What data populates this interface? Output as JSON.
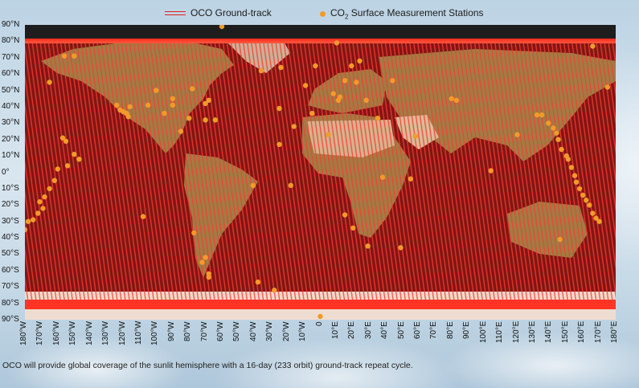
{
  "legend": {
    "track_label": "OCO Ground-track",
    "stations_label_prefix": "CO",
    "stations_label_sub": "2",
    "stations_label_suffix": " Surface Measurement Stations"
  },
  "colors": {
    "track": "#e02020",
    "stations": "#f39a2a",
    "ocean": "#8c1a18",
    "land": "#9a7a3a",
    "polar": "#f4e2d8"
  },
  "lat_labels": [
    "90°N",
    "80°N",
    "70°N",
    "60°N",
    "50°N",
    "40°N",
    "30°N",
    "20°N",
    "10°N",
    "0°",
    "10°S",
    "20°S",
    "30°S",
    "40°S",
    "50°S",
    "60°S",
    "70°S",
    "80°S",
    "90°S"
  ],
  "lon_labels": [
    "180°W",
    "170°W",
    "160°W",
    "150°W",
    "140°W",
    "130°W",
    "120°W",
    "110°W",
    "100°W",
    "90°W",
    "80°W",
    "70°W",
    "60°W",
    "50°W",
    "40°W",
    "30°W",
    "20°W",
    "10°W",
    "0",
    "10°E",
    "20°E",
    "30°E",
    "40°E",
    "50°E",
    "60°E",
    "70°E",
    "80°E",
    "90°E",
    "100°E",
    "110°E",
    "120°E",
    "130°E",
    "140°E",
    "150°E",
    "160°E",
    "170°E",
    "180°E"
  ],
  "stations": [
    [
      -60,
      89
    ],
    [
      -150,
      71
    ],
    [
      10,
      79
    ],
    [
      166,
      77
    ],
    [
      -156,
      71
    ],
    [
      -165,
      55
    ],
    [
      -36,
      62
    ],
    [
      24,
      68
    ],
    [
      19,
      65
    ],
    [
      -3,
      65
    ],
    [
      -78,
      51
    ],
    [
      -100,
      50
    ],
    [
      -68,
      44
    ],
    [
      -70,
      42
    ],
    [
      -105,
      41
    ],
    [
      -116,
      40
    ],
    [
      -120,
      37
    ],
    [
      -117,
      34
    ],
    [
      -118,
      36
    ],
    [
      -122,
      38
    ],
    [
      -124,
      41
    ],
    [
      -90,
      45
    ],
    [
      -90,
      41
    ],
    [
      -95,
      36
    ],
    [
      -80,
      33
    ],
    [
      -85,
      25
    ],
    [
      -70,
      32
    ],
    [
      -64,
      32
    ],
    [
      -25,
      39
    ],
    [
      -16,
      28
    ],
    [
      -9,
      53
    ],
    [
      -24,
      64
    ],
    [
      8,
      48
    ],
    [
      11,
      44
    ],
    [
      12,
      46
    ],
    [
      15,
      56
    ],
    [
      22,
      55
    ],
    [
      28,
      44
    ],
    [
      35,
      33
    ],
    [
      44,
      56
    ],
    [
      5,
      23
    ],
    [
      -5,
      36
    ],
    [
      -25,
      17
    ],
    [
      -41,
      -8
    ],
    [
      -18,
      -8
    ],
    [
      -157,
      21
    ],
    [
      -155,
      19
    ],
    [
      -150,
      11
    ],
    [
      -147,
      8
    ],
    [
      -160,
      2
    ],
    [
      -154,
      4
    ],
    [
      -162,
      -5
    ],
    [
      -165,
      -10
    ],
    [
      -168,
      -15
    ],
    [
      -171,
      -18
    ],
    [
      -169,
      -22
    ],
    [
      -178,
      -30
    ],
    [
      -175,
      -29
    ],
    [
      -172,
      -25
    ],
    [
      -180,
      -35
    ],
    [
      -108,
      -27
    ],
    [
      -77,
      -37
    ],
    [
      -72,
      -55
    ],
    [
      -70,
      -52
    ],
    [
      -68,
      -62
    ],
    [
      -68,
      -64
    ],
    [
      -38,
      -67
    ],
    [
      -28,
      -72
    ],
    [
      0,
      -88
    ],
    [
      20,
      -34
    ],
    [
      29,
      -45
    ],
    [
      49,
      -46
    ],
    [
      55,
      -4
    ],
    [
      38,
      -3
    ],
    [
      15,
      -26
    ],
    [
      104,
      1
    ],
    [
      120,
      23
    ],
    [
      135,
      35
    ],
    [
      132,
      35
    ],
    [
      139,
      30
    ],
    [
      142,
      27
    ],
    [
      144,
      24
    ],
    [
      145,
      20
    ],
    [
      147,
      14
    ],
    [
      150,
      10
    ],
    [
      151,
      8
    ],
    [
      153,
      3
    ],
    [
      155,
      -2
    ],
    [
      156,
      -6
    ],
    [
      158,
      -10
    ],
    [
      160,
      -14
    ],
    [
      162,
      -17
    ],
    [
      164,
      -20
    ],
    [
      166,
      -25
    ],
    [
      168,
      -28
    ],
    [
      170,
      -30
    ],
    [
      146,
      -41
    ],
    [
      175,
      52
    ],
    [
      58,
      22
    ],
    [
      80,
      45
    ],
    [
      83,
      44
    ]
  ],
  "caption": "OCO will provide global coverage of the sunlit hemisphere with a 16-day (233 orbit) ground-track repeat cycle."
}
